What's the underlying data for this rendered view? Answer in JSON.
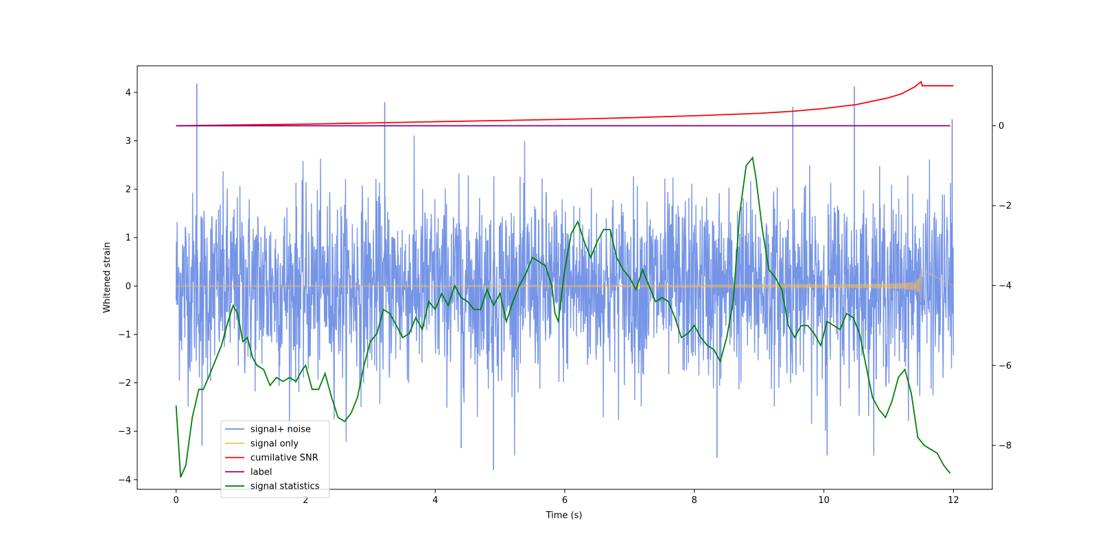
{
  "chart_data": {
    "type": "line",
    "title": "",
    "xlabel": "Time (s)",
    "ylabel": "Whitened strain",
    "y2label": "",
    "xlim": [
      -0.6,
      12.6
    ],
    "ylim": [
      -4.2,
      4.55
    ],
    "y2lim": [
      -9.1,
      1.5
    ],
    "x_ticks": [
      0,
      2,
      4,
      6,
      8,
      10,
      12
    ],
    "y_ticks": [
      -4,
      -3,
      -2,
      -1,
      0,
      1,
      2,
      3,
      4
    ],
    "y2_ticks": [
      -8,
      -6,
      -4,
      -2,
      0
    ],
    "grid": false,
    "legend_position": "lower-left",
    "series": [
      {
        "name": "signal+ noise",
        "axis": "left",
        "color": "#6f8fe6",
        "description_values": {
          "x_start": 0,
          "x_end": 12,
          "mean": 0,
          "std": 0.95,
          "max": 4.18,
          "min": -3.8
        },
        "spikes": [
          [
            0.32,
            4.18
          ],
          [
            3.22,
            3.8
          ],
          [
            10.47,
            4.12
          ],
          [
            9.52,
            3.7
          ],
          [
            11.98,
            3.45
          ],
          [
            4.9,
            -3.8
          ],
          [
            8.35,
            -3.55
          ],
          [
            10.05,
            -3.5
          ],
          [
            0.4,
            -3.3
          ],
          [
            4.4,
            -3.35
          ]
        ]
      },
      {
        "name": "signal only",
        "axis": "left",
        "color": "#ffc04d",
        "chirp": {
          "x_start": 0,
          "x_merge": 11.5,
          "x_end": 12,
          "peak_amplitude": 0.8
        }
      },
      {
        "name": "cumilative SNR",
        "axis": "right",
        "color": "#ff0000",
        "x": [
          0,
          1,
          2,
          3,
          4,
          5,
          6,
          7,
          8,
          9,
          9.5,
          10,
          10.5,
          11,
          11.2,
          11.4,
          11.5,
          11.52,
          12
        ],
        "values": [
          0.0,
          0.02,
          0.04,
          0.07,
          0.1,
          0.13,
          0.16,
          0.2,
          0.25,
          0.31,
          0.36,
          0.43,
          0.53,
          0.7,
          0.8,
          0.97,
          1.1,
          1.0,
          1.0
        ]
      },
      {
        "name": "label",
        "axis": "right",
        "color": "#800080",
        "x": [
          0,
          11.95
        ],
        "values": [
          0,
          0
        ]
      },
      {
        "name": "signal statistics",
        "axis": "right",
        "color": "#008000",
        "x": [
          0,
          0.07,
          0.15,
          0.25,
          0.35,
          0.42,
          0.5,
          0.6,
          0.7,
          0.8,
          0.88,
          0.95,
          1.03,
          1.1,
          1.18,
          1.25,
          1.35,
          1.45,
          1.55,
          1.65,
          1.75,
          1.85,
          1.95,
          2.0,
          2.1,
          2.2,
          2.3,
          2.4,
          2.5,
          2.6,
          2.7,
          2.8,
          2.9,
          3.0,
          3.1,
          3.2,
          3.3,
          3.4,
          3.5,
          3.6,
          3.7,
          3.8,
          3.9,
          4.0,
          4.1,
          4.2,
          4.3,
          4.4,
          4.5,
          4.6,
          4.7,
          4.8,
          4.9,
          5.0,
          5.1,
          5.2,
          5.3,
          5.4,
          5.5,
          5.6,
          5.7,
          5.8,
          5.85,
          5.9,
          6.0,
          6.1,
          6.2,
          6.3,
          6.4,
          6.5,
          6.6,
          6.7,
          6.8,
          6.9,
          7.0,
          7.1,
          7.2,
          7.3,
          7.4,
          7.5,
          7.6,
          7.7,
          7.8,
          7.9,
          8.0,
          8.1,
          8.2,
          8.3,
          8.4,
          8.5,
          8.6,
          8.7,
          8.8,
          8.9,
          8.95,
          9.05,
          9.15,
          9.25,
          9.35,
          9.45,
          9.55,
          9.65,
          9.75,
          9.85,
          9.95,
          10.05,
          10.15,
          10.25,
          10.35,
          10.45,
          10.55,
          10.65,
          10.75,
          10.85,
          10.95,
          11.05,
          11.15,
          11.25,
          11.35,
          11.45,
          11.55,
          11.65,
          11.75,
          11.85,
          11.95
        ],
        "values": [
          -7.0,
          -8.8,
          -8.5,
          -7.3,
          -6.6,
          -6.6,
          -6.3,
          -5.9,
          -5.5,
          -4.9,
          -4.5,
          -4.7,
          -5.4,
          -5.3,
          -5.8,
          -6.0,
          -6.1,
          -6.5,
          -6.3,
          -6.4,
          -6.3,
          -6.4,
          -6.1,
          -6.0,
          -6.6,
          -6.6,
          -6.2,
          -6.8,
          -7.3,
          -7.4,
          -7.2,
          -6.8,
          -6.0,
          -5.4,
          -5.2,
          -4.6,
          -4.7,
          -5.0,
          -5.3,
          -5.2,
          -4.8,
          -5.1,
          -4.4,
          -4.6,
          -4.2,
          -4.5,
          -4.0,
          -4.3,
          -4.4,
          -4.6,
          -4.6,
          -4.1,
          -4.5,
          -4.2,
          -4.9,
          -4.4,
          -4.0,
          -3.7,
          -3.3,
          -3.4,
          -3.5,
          -4.0,
          -4.7,
          -4.9,
          -3.6,
          -2.7,
          -2.4,
          -2.9,
          -3.3,
          -2.9,
          -2.6,
          -2.6,
          -3.3,
          -3.6,
          -3.8,
          -4.1,
          -3.6,
          -4.0,
          -4.4,
          -4.3,
          -4.4,
          -4.8,
          -5.3,
          -5.2,
          -5.0,
          -5.3,
          -5.5,
          -5.6,
          -5.9,
          -5.3,
          -4.4,
          -2.2,
          -1.0,
          -0.8,
          -1.3,
          -2.6,
          -3.6,
          -3.8,
          -4.1,
          -5.0,
          -5.3,
          -5.0,
          -5.0,
          -5.2,
          -5.5,
          -4.9,
          -5.0,
          -5.1,
          -4.7,
          -4.8,
          -5.2,
          -6.0,
          -6.8,
          -7.1,
          -7.3,
          -6.9,
          -6.3,
          -6.1,
          -6.7,
          -7.8,
          -8.0,
          -8.1,
          -8.2,
          -8.5,
          -8.7
        ]
      }
    ]
  },
  "legend": {
    "items": [
      {
        "label": "signal+ noise",
        "color": "#6f8fe6"
      },
      {
        "label": "signal only",
        "color": "#ffc04d"
      },
      {
        "label": "cumilative SNR",
        "color": "#ff0000"
      },
      {
        "label": "label",
        "color": "#800080"
      },
      {
        "label": "signal statistics",
        "color": "#008000"
      }
    ]
  }
}
